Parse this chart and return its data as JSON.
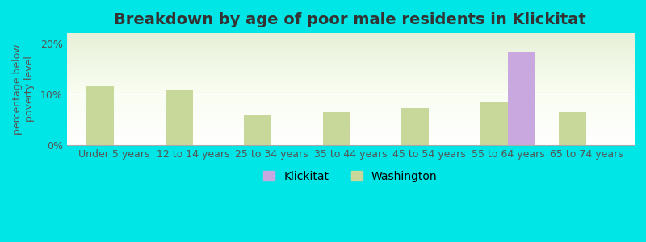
{
  "title": "Breakdown by age of poor male residents in Klickitat",
  "ylabel": "percentage below\npoverty level",
  "categories": [
    "Under 5 years",
    "12 to 14 years",
    "25 to 34 years",
    "35 to 44 years",
    "45 to 54 years",
    "55 to 64 years",
    "65 to 74 years"
  ],
  "klickitat_values": [
    null,
    null,
    null,
    null,
    null,
    18.2,
    null
  ],
  "washington_values": [
    11.5,
    11.0,
    6.0,
    6.5,
    7.2,
    8.5,
    6.5
  ],
  "klickitat_color": "#c9a8e0",
  "washington_color": "#c8d89a",
  "background_color": "#00e5e5",
  "plot_bg_start": "#f0f5e8",
  "plot_bg_end": "#ffffff",
  "ylim": [
    0,
    22
  ],
  "yticks": [
    0,
    10,
    20
  ],
  "ytick_labels": [
    "0%",
    "10%",
    "20%"
  ],
  "bar_width": 0.35,
  "title_fontsize": 14,
  "tick_fontsize": 9,
  "legend_fontsize": 10
}
